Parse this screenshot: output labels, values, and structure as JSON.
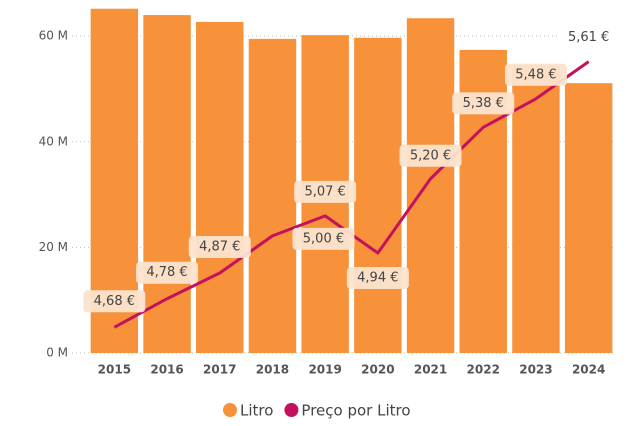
{
  "chart_data": {
    "type": "bar_line",
    "categories": [
      "2015",
      "2016",
      "2017",
      "2018",
      "2019",
      "2020",
      "2021",
      "2022",
      "2023",
      "2024"
    ],
    "series": [
      {
        "name": "Litro",
        "type": "bar",
        "color": "#f7923a",
        "values": [
          65.2,
          64.0,
          62.7,
          59.5,
          60.2,
          59.7,
          63.4,
          57.4,
          54.5,
          51.1
        ]
      },
      {
        "name": "Preço por Litro",
        "type": "line",
        "axis": "y2",
        "color": "#c4115e",
        "values": [
          4.68,
          4.78,
          4.87,
          5.0,
          5.07,
          4.94,
          5.2,
          5.38,
          5.48,
          5.61
        ],
        "value_labels": [
          "4,68 €",
          "4,78 €",
          "4,87 €",
          "5,00 €",
          "5,07 €",
          "4,94 €",
          "5,20 €",
          "5,38 €",
          "5,48 €",
          "5,61 €"
        ]
      }
    ],
    "ylim": [
      0,
      66
    ],
    "yticks": [
      {
        "value": 0,
        "label": "0 M"
      },
      {
        "value": 20,
        "label": "20 M"
      },
      {
        "value": 40,
        "label": "40 M"
      },
      {
        "value": 60,
        "label": "60 M"
      }
    ],
    "y2lim": [
      4.59,
      5.81
    ],
    "grid": true,
    "legend": "bottom"
  }
}
